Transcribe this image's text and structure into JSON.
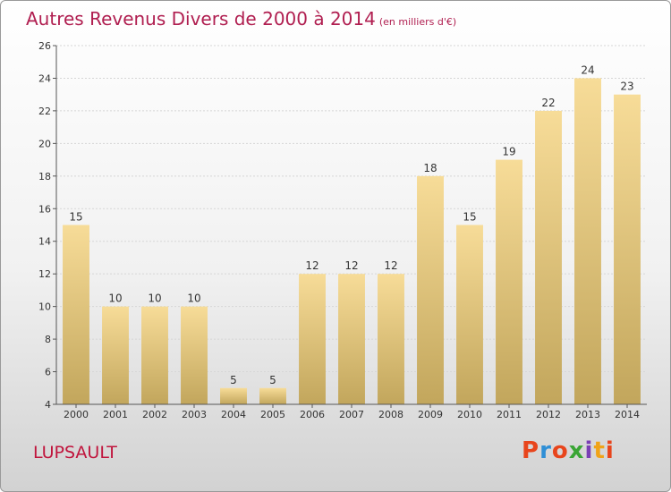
{
  "header": {
    "title": "Autres Revenus Divers de 2000 à 2014",
    "unit": "(en milliers d'€)"
  },
  "footer": {
    "place": "LUPSAULT",
    "brand": "Proxiti",
    "brand_colors": [
      "#e8451c",
      "#2f8fd6",
      "#e8451c",
      "#3aa535",
      "#7a3fb5",
      "#f0a318",
      "#e8451c"
    ]
  },
  "chart_data": {
    "type": "bar",
    "title": "Autres Revenus Divers de 2000 à 2014",
    "subtitle": "(en milliers d'€)",
    "categories": [
      "2000",
      "2001",
      "2002",
      "2003",
      "2004",
      "2005",
      "2006",
      "2007",
      "2008",
      "2009",
      "2010",
      "2011",
      "2012",
      "2013",
      "2014"
    ],
    "values": [
      15,
      10,
      10,
      10,
      5,
      5,
      12,
      12,
      12,
      18,
      15,
      19,
      22,
      24,
      23
    ],
    "ylim": [
      4,
      26
    ],
    "yticks": [
      4,
      6,
      8,
      10,
      12,
      14,
      16,
      18,
      20,
      22,
      24,
      26
    ],
    "grid": true,
    "bar_color_top": "#f7dc98",
    "bar_color_bottom": "#c2a65c",
    "title_color": "#b01e50"
  }
}
